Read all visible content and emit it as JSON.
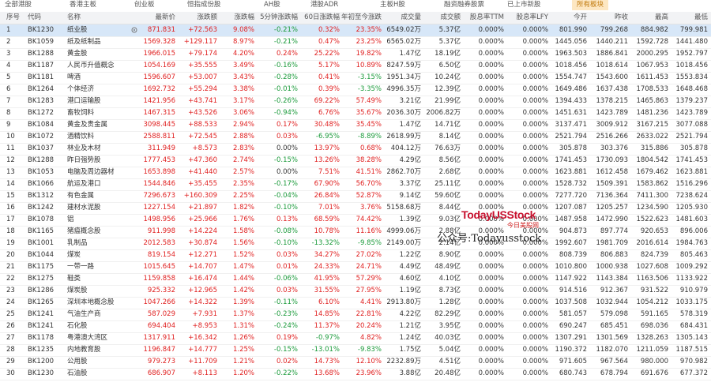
{
  "tabs": [
    "全部港股",
    "香港主板",
    "创业板",
    "恒指成份股",
    "AH股",
    "港股ADR",
    "主板H股",
    "融资融券股票",
    "已上市新股",
    "所有板块"
  ],
  "table": {
    "headers": [
      "序号",
      "代码",
      "名称",
      "最新价",
      "涨跌额",
      "涨跌幅",
      "5分钟涨跌幅",
      "60日涨跌幅",
      "年初至今涨跌",
      "成交量",
      "成交额",
      "股息率TTM",
      "股息率LFY",
      "今开",
      "昨收",
      "最高",
      "最低"
    ],
    "rows": [
      [
        "1",
        "BK1230",
        "纸业股",
        "871.831",
        "+72.563",
        "9.08%",
        "-0.21%",
        "0.32%",
        "23.35%",
        "6549.02万",
        "5.37亿",
        "0.000%",
        "0.000%",
        "801.990",
        "799.268",
        "884.982",
        "799.981"
      ],
      [
        "2",
        "BK1059",
        "纸及纸制品",
        "1569.328",
        "+129.117",
        "8.97%",
        "-0.21%",
        "0.47%",
        "23.25%",
        "6565.02万",
        "5.37亿",
        "0.000%",
        "0.000%",
        "1445.056",
        "1440.211",
        "1592.728",
        "1441.480"
      ],
      [
        "3",
        "BK1288",
        "黄金股",
        "1966.015",
        "+79.174",
        "4.20%",
        "0.24%",
        "25.22%",
        "19.82%",
        "1.47亿",
        "18.19亿",
        "0.000%",
        "0.000%",
        "1963.503",
        "1886.841",
        "2000.295",
        "1952.797"
      ],
      [
        "4",
        "BK1187",
        "人民币升值概念",
        "1054.169",
        "+35.555",
        "3.49%",
        "-0.16%",
        "5.17%",
        "10.89%",
        "8247.59万",
        "6.50亿",
        "0.000%",
        "0.000%",
        "1018.456",
        "1018.614",
        "1067.953",
        "1018.456"
      ],
      [
        "5",
        "BK1181",
        "啤酒",
        "1596.607",
        "+53.007",
        "3.43%",
        "-0.28%",
        "0.41%",
        "-3.15%",
        "1951.34万",
        "10.24亿",
        "0.000%",
        "0.000%",
        "1554.747",
        "1543.600",
        "1611.453",
        "1553.834"
      ],
      [
        "6",
        "BK1264",
        "个体经济",
        "1692.732",
        "+55.294",
        "3.38%",
        "-0.01%",
        "0.39%",
        "-3.35%",
        "4996.35万",
        "12.39亿",
        "0.000%",
        "0.000%",
        "1649.486",
        "1637.438",
        "1708.533",
        "1648.468"
      ],
      [
        "7",
        "BK1283",
        "港口运输股",
        "1421.956",
        "+43.741",
        "3.17%",
        "-0.26%",
        "69.22%",
        "57.49%",
        "3.21亿",
        "21.99亿",
        "0.000%",
        "0.000%",
        "1394.433",
        "1378.215",
        "1465.863",
        "1379.237"
      ],
      [
        "8",
        "BK1272",
        "畜牧饲料",
        "1467.315",
        "+43.526",
        "3.06%",
        "-0.94%",
        "6.76%",
        "35.67%",
        "2036.30万",
        "2006.82万",
        "0.000%",
        "0.000%",
        "1451.631",
        "1423.789",
        "1481.236",
        "1423.789"
      ],
      [
        "9",
        "BK1084",
        "黄金及贵金属",
        "3098.445",
        "+88.533",
        "2.94%",
        "0.17%",
        "30.48%",
        "35.45%",
        "1.47亿",
        "14.71亿",
        "0.000%",
        "0.000%",
        "3137.471",
        "3009.912",
        "3167.215",
        "3077.088"
      ],
      [
        "10",
        "BK1072",
        "酒精饮料",
        "2588.811",
        "+72.545",
        "2.88%",
        "0.03%",
        "-6.95%",
        "-8.89%",
        "2618.99万",
        "8.14亿",
        "0.000%",
        "0.000%",
        "2521.794",
        "2516.266",
        "2633.022",
        "2521.794"
      ],
      [
        "11",
        "BK1037",
        "林业及木材",
        "311.949",
        "+8.573",
        "2.83%",
        "0.00%",
        "13.97%",
        "0.68%",
        "404.12万",
        "76.63万",
        "0.000%",
        "0.000%",
        "305.878",
        "303.376",
        "315.886",
        "305.878"
      ],
      [
        "12",
        "BK1288",
        "昨日强势股",
        "1777.453",
        "+47.360",
        "2.74%",
        "-0.15%",
        "13.26%",
        "38.28%",
        "4.29亿",
        "8.56亿",
        "0.000%",
        "0.000%",
        "1741.453",
        "1730.093",
        "1804.542",
        "1741.453"
      ],
      [
        "13",
        "BK1053",
        "电脑及周边器材",
        "1653.898",
        "+41.440",
        "2.57%",
        "0.00%",
        "7.51%",
        "41.51%",
        "2862.70万",
        "2.68亿",
        "0.000%",
        "0.000%",
        "1623.881",
        "1612.458",
        "1679.462",
        "1623.881"
      ],
      [
        "14",
        "BK1066",
        "航运及港口",
        "1544.846",
        "+35.455",
        "2.35%",
        "-0.17%",
        "67.90%",
        "56.70%",
        "3.37亿",
        "25.11亿",
        "0.000%",
        "0.000%",
        "1528.732",
        "1509.391",
        "1583.862",
        "1516.296"
      ],
      [
        "15",
        "BK1312",
        "有色金属",
        "7296.673",
        "+160.309",
        "2.25%",
        "-0.04%",
        "26.84%",
        "52.87%",
        "9.14亿",
        "59.60亿",
        "0.000%",
        "0.000%",
        "7277.720",
        "7136.364",
        "7411.300",
        "7238.624"
      ],
      [
        "16",
        "BK1242",
        "建材水泥股",
        "1227.154",
        "+21.897",
        "1.82%",
        "-0.10%",
        "7.01%",
        "3.76%",
        "5158.68万",
        "8.44亿",
        "0.000%",
        "0.000%",
        "1207.087",
        "1205.257",
        "1234.590",
        "1205.930"
      ],
      [
        "17",
        "BK1078",
        "铝",
        "1498.956",
        "+25.966",
        "1.76%",
        "0.13%",
        "68.59%",
        "74.42%",
        "1.39亿",
        "9.03亿",
        "0.000%",
        "0.000%",
        "1487.958",
        "1472.990",
        "1522.623",
        "1481.603"
      ],
      [
        "18",
        "BK1165",
        "猪瘟概念股",
        "911.998",
        "+14.224",
        "1.58%",
        "-0.08%",
        "10.78%",
        "11.16%",
        "4999.06万",
        "2.88亿",
        "0.000%",
        "0.000%",
        "904.873",
        "897.774",
        "920.653",
        "896.006"
      ],
      [
        "19",
        "BK1001",
        "乳制品",
        "2012.583",
        "+30.874",
        "1.56%",
        "-0.10%",
        "-13.32%",
        "-9.85%",
        "2149.00万",
        "2.14亿",
        "0.000%",
        "0.000%",
        "1992.607",
        "1981.709",
        "2016.614",
        "1984.763"
      ],
      [
        "20",
        "BK1044",
        "煤炭",
        "819.154",
        "+12.271",
        "1.52%",
        "0.03%",
        "34.27%",
        "27.02%",
        "1.22亿",
        "8.90亿",
        "0.000%",
        "0.000%",
        "808.739",
        "806.883",
        "824.739",
        "805.463"
      ],
      [
        "21",
        "BK1175",
        "一带一路",
        "1015.645",
        "+14.707",
        "1.47%",
        "0.01%",
        "24.33%",
        "24.71%",
        "4.49亿",
        "48.49亿",
        "0.000%",
        "0.000%",
        "1010.800",
        "1000.938",
        "1027.608",
        "1009.292"
      ],
      [
        "22",
        "BK1275",
        "鞋类",
        "1159.858",
        "+16.474",
        "1.44%",
        "-0.06%",
        "41.95%",
        "57.29%",
        "4.60亿",
        "4.10亿",
        "0.000%",
        "0.000%",
        "1147.922",
        "1143.384",
        "1163.506",
        "1133.922"
      ],
      [
        "23",
        "BK1286",
        "煤炭股",
        "925.332",
        "+12.965",
        "1.42%",
        "0.03%",
        "31.55%",
        "27.95%",
        "1.19亿",
        "8.73亿",
        "0.000%",
        "0.000%",
        "914.516",
        "912.367",
        "931.522",
        "910.979"
      ],
      [
        "24",
        "BK1265",
        "深圳本地概念股",
        "1047.266",
        "+14.322",
        "1.39%",
        "-0.11%",
        "6.10%",
        "4.41%",
        "2913.80万",
        "1.28亿",
        "0.000%",
        "0.000%",
        "1037.508",
        "1032.944",
        "1054.212",
        "1033.175"
      ],
      [
        "25",
        "BK1241",
        "气油生产商",
        "587.029",
        "+7.931",
        "1.37%",
        "-0.23%",
        "14.85%",
        "22.81%",
        "4.22亿",
        "82.29亿",
        "0.000%",
        "0.000%",
        "581.057",
        "579.098",
        "591.165",
        "578.319"
      ],
      [
        "26",
        "BK1241",
        "石化股",
        "694.404",
        "+8.953",
        "1.31%",
        "-0.24%",
        "11.37%",
        "20.24%",
        "1.21亿",
        "3.95亿",
        "0.000%",
        "0.000%",
        "690.247",
        "685.451",
        "698.036",
        "684.431"
      ],
      [
        "27",
        "BK1178",
        "粤港澳大湾区",
        "1317.911",
        "+16.342",
        "1.26%",
        "0.19%",
        "-0.97%",
        "4.82%",
        "1.24亿",
        "40.03亿",
        "0.000%",
        "0.000%",
        "1307.291",
        "1301.569",
        "1328.263",
        "1305.143"
      ],
      [
        "28",
        "BK1235",
        "内地教育股",
        "1196.847",
        "+14.777",
        "1.25%",
        "-0.15%",
        "-13.01%",
        "-9.83%",
        "1.75亿",
        "5.04亿",
        "0.000%",
        "0.000%",
        "1190.372",
        "1182.070",
        "1211.059",
        "1187.515"
      ],
      [
        "29",
        "BK1200",
        "公用股",
        "979.273",
        "+11.709",
        "1.21%",
        "0.02%",
        "14.73%",
        "12.10%",
        "2232.89万",
        "4.51亿",
        "0.000%",
        "0.000%",
        "971.605",
        "967.564",
        "980.000",
        "970.982"
      ],
      [
        "30",
        "BK1230",
        "石油股",
        "686.907",
        "+8.113",
        "1.20%",
        "-0.22%",
        "13.68%",
        "23.96%",
        "3.88亿",
        "20.48亿",
        "0.000%",
        "0.000%",
        "680.743",
        "678.794",
        "691.676",
        "677.372"
      ]
    ]
  },
  "watermark": {
    "logo": "TodayUSStock",
    "sub": "今日美股网",
    "account": "公众号:Todayusstock"
  }
}
